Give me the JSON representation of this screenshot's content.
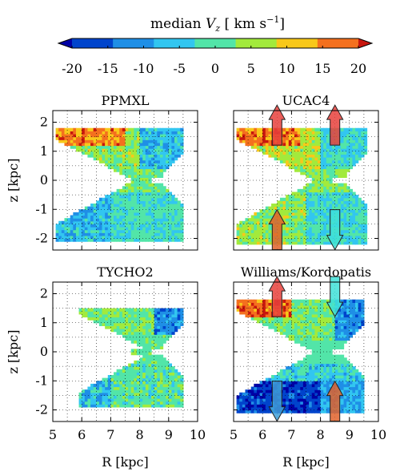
{
  "chart_data": [
    {
      "type": "heatmap",
      "title": "PPMXL",
      "xlabel": "",
      "ylabel": "z [kpc]",
      "xlim": [
        5,
        10
      ],
      "ylim": [
        -2.4,
        2.4
      ],
      "xticks": [
        "5",
        "6",
        "7",
        "8",
        "9",
        "10"
      ],
      "yticks": [
        "2",
        "1",
        "0",
        "-1",
        "-2"
      ],
      "grid": true,
      "arrows": []
    },
    {
      "type": "heatmap",
      "title": "UCAC4",
      "xlabel": "",
      "ylabel": "",
      "xlim": [
        5,
        10
      ],
      "ylim": [
        -2.4,
        2.4
      ],
      "xticks": [
        "5",
        "6",
        "7",
        "8",
        "9",
        "10"
      ],
      "yticks": [
        "2",
        "1",
        "0",
        "-1",
        "-2"
      ],
      "grid": true,
      "arrows": [
        {
          "r": 6.5,
          "z": 1.9,
          "direction": "up",
          "color": "#e8413c"
        },
        {
          "r": 8.5,
          "z": 1.9,
          "direction": "up",
          "color": "#e8413c"
        },
        {
          "r": 6.5,
          "z": -1.7,
          "direction": "up",
          "color": "#e0622c"
        },
        {
          "r": 8.5,
          "z": -1.7,
          "direction": "down",
          "color": "#3fe0d8"
        }
      ]
    },
    {
      "type": "heatmap",
      "title": "TYCHO2",
      "xlabel": "R [kpc]",
      "ylabel": "z [kpc]",
      "xlim": [
        5,
        10
      ],
      "ylim": [
        -2.4,
        2.4
      ],
      "xticks": [
        "5",
        "6",
        "7",
        "8",
        "9",
        "10"
      ],
      "yticks": [
        "2",
        "1",
        "0",
        "-1",
        "-2"
      ],
      "grid": true,
      "arrows": []
    },
    {
      "type": "heatmap",
      "title": "Williams/Kordopatis",
      "xlabel": "R [kpc]",
      "ylabel": "",
      "xlim": [
        5,
        10
      ],
      "ylim": [
        -2.4,
        2.4
      ],
      "xticks": [
        "5",
        "6",
        "7",
        "8",
        "9",
        "10"
      ],
      "yticks": [
        "2",
        "1",
        "0",
        "-1",
        "-2"
      ],
      "grid": true,
      "arrows": [
        {
          "r": 6.5,
          "z": 1.9,
          "direction": "up",
          "color": "#e8413c"
        },
        {
          "r": 8.5,
          "z": 1.9,
          "direction": "down",
          "color": "#3fe0d8"
        },
        {
          "r": 6.5,
          "z": -1.7,
          "direction": "down",
          "color": "#3fa0d8"
        },
        {
          "r": 8.5,
          "z": -1.7,
          "direction": "up",
          "color": "#e0622c"
        }
      ]
    }
  ],
  "colorbar": {
    "label_text": "median ",
    "label_var": "V",
    "label_sub": "z",
    "label_unit": "  [ km s",
    "label_exp": "−1",
    "label_close": "]",
    "ticks": [
      "-20",
      "-15",
      "-10",
      "-5",
      "0",
      "5",
      "10",
      "15",
      "20"
    ],
    "range": [
      -20,
      20
    ],
    "extend": "both",
    "colors": [
      "#0000a5",
      "#0044cc",
      "#1f8fe6",
      "#32c6f0",
      "#52e5a8",
      "#a2ea3c",
      "#f8c81a",
      "#f4701e",
      "#c8160e"
    ]
  }
}
